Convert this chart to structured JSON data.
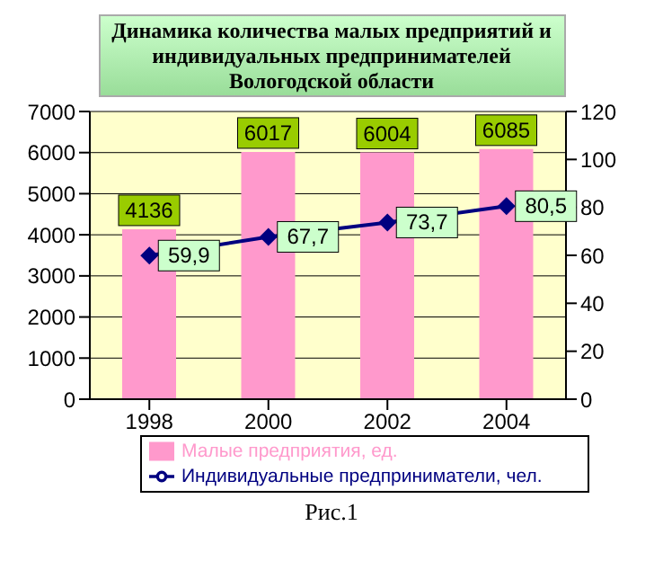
{
  "chart_data": {
    "type": "bar",
    "title": "Динамика количества малых предприятий и индивидуальных предпринимателей Вологодской области",
    "categories": [
      "1998",
      "2000",
      "2002",
      "2004"
    ],
    "series": [
      {
        "name": "Малые предприятия, ед.",
        "color": "#ff99cc",
        "values": [
          4136,
          6017,
          6004,
          6085
        ],
        "value_labels": [
          "4136",
          "6017",
          "6004",
          "6085"
        ]
      },
      {
        "name": "Индивидуальные предприниматели, чел.",
        "type": "line",
        "axis": "y2",
        "color": "#000080",
        "marker": "diamond",
        "values": [
          59.9,
          67.7,
          73.7,
          80.5
        ],
        "value_labels": [
          "59,9",
          "67,7",
          "73,7",
          "80,5"
        ]
      }
    ],
    "ylim": [
      0,
      7000
    ],
    "yticks": [
      0,
      1000,
      2000,
      3000,
      4000,
      5000,
      6000,
      7000
    ],
    "y2lim": [
      0,
      120
    ],
    "y2ticks": [
      0,
      20,
      40,
      60,
      80,
      100,
      120
    ],
    "grid": "y",
    "legend": "bottom",
    "annotations": [
      "Рис.1"
    ]
  }
}
